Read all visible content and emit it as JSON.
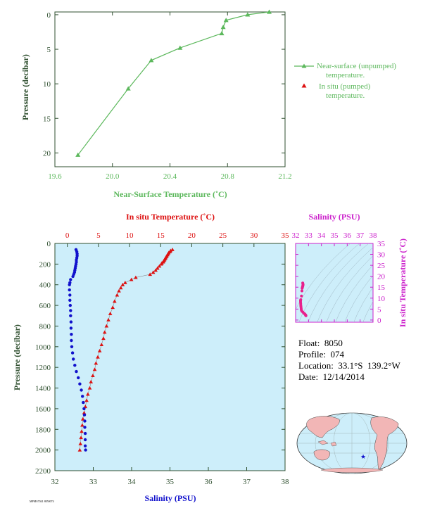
{
  "colors": {
    "green": "#5cb85c",
    "red": "#dd1111",
    "blue": "#1111cc",
    "magenta": "#cc22cc",
    "pink": "#e8208c",
    "axis_dark": "#2f4f2f",
    "plot_bg": "#cdeefa",
    "land": "#f2b6b6"
  },
  "info": {
    "float": "Float:  8050",
    "profile": "Profile:  074",
    "location": "Location:  33.1°S  139.2°W",
    "date": "Date:  12/14/2014"
  },
  "footer_code": "MPMS7041 8050074",
  "chart_data": [
    {
      "type": "line",
      "id": "near-surface",
      "xlabel": "Near-Surface Temperature (˚C)",
      "ylabel": "Pressure (decibar)",
      "xlim": [
        19.6,
        21.2
      ],
      "ylim": [
        22,
        -0.4
      ],
      "xticks": [
        "19.6",
        "20.0",
        "20.4",
        "20.8",
        "21.2"
      ],
      "yticks": [
        "0",
        "5",
        "10",
        "15",
        "20"
      ],
      "legend_position": "right",
      "legend": [
        {
          "label": "Near-surface (unpumped)",
          "label2": "temperature.",
          "color": "#5cb85c"
        },
        {
          "label": "In situ (pumped)",
          "label2": "temperature.",
          "color": "#dd1111"
        }
      ],
      "series": [
        {
          "name": "Near-surface (unpumped) temperature.",
          "color": "#5cb85c",
          "x": [
            21.09,
            20.94,
            20.79,
            20.77,
            20.76,
            20.47,
            20.27,
            20.11,
            19.76
          ],
          "y": [
            -0.4,
            0.0,
            0.8,
            1.8,
            2.7,
            4.8,
            6.6,
            10.7,
            20.3
          ]
        }
      ]
    },
    {
      "type": "scatter",
      "id": "profile",
      "top_axis_label": "In situ Temperature (˚C)",
      "bottom_axis_label": "Salinity (PSU)",
      "ylabel": "Pressure (decibar)",
      "top_xlim": [
        -2,
        35
      ],
      "bottom_xlim": [
        32,
        38
      ],
      "ylim": [
        2200,
        0
      ],
      "top_ticks": [
        "0",
        "5",
        "10",
        "15",
        "20",
        "25",
        "30",
        "35"
      ],
      "bottom_ticks": [
        "32",
        "33",
        "34",
        "35",
        "36",
        "37",
        "38"
      ],
      "yticks": [
        "0",
        "200",
        "400",
        "600",
        "800",
        "1000",
        "1200",
        "1400",
        "1600",
        "1800",
        "2000",
        "2200"
      ],
      "series": [
        {
          "name": "In situ Temperature (˚C)",
          "color": "#dd1111",
          "p": [
            60,
            70,
            80,
            90,
            100,
            110,
            120,
            130,
            140,
            150,
            160,
            170,
            180,
            190,
            200,
            220,
            240,
            260,
            280,
            300,
            330,
            350,
            380,
            400,
            430,
            460,
            500,
            560,
            620,
            680,
            740,
            800,
            860,
            920,
            980,
            1040,
            1100,
            1160,
            1220,
            1280,
            1340,
            1400,
            1460,
            1520,
            1580,
            1640,
            1700,
            1760,
            1820,
            1880,
            1940,
            2000
          ],
          "t": [
            16.9,
            16.6,
            16.5,
            16.3,
            16.2,
            16.1,
            16.0,
            15.9,
            15.8,
            15.7,
            15.6,
            15.5,
            15.4,
            15.2,
            15.1,
            14.8,
            14.5,
            14.2,
            13.8,
            13.3,
            11.0,
            10.3,
            9.3,
            8.9,
            8.6,
            8.3,
            8.0,
            7.6,
            7.3,
            6.9,
            6.6,
            6.3,
            6.0,
            5.8,
            5.5,
            5.2,
            4.9,
            4.6,
            4.4,
            4.1,
            3.8,
            3.6,
            3.3,
            3.1,
            2.9,
            2.7,
            2.5,
            2.4,
            2.3,
            2.2,
            2.1,
            2.0
          ]
        },
        {
          "name": "Salinity (PSU)",
          "color": "#1111cc",
          "p": [
            60,
            80,
            100,
            120,
            140,
            160,
            180,
            200,
            220,
            240,
            260,
            280,
            300,
            320,
            350,
            380,
            400,
            450,
            500,
            550,
            600,
            650,
            700,
            760,
            820,
            880,
            940,
            1000,
            1060,
            1120,
            1180,
            1240,
            1300,
            1360,
            1420,
            1480,
            1540,
            1600,
            1660,
            1720,
            1780,
            1840,
            1900,
            1960,
            2000
          ],
          "s": [
            32.55,
            32.57,
            32.58,
            32.58,
            32.57,
            32.56,
            32.56,
            32.55,
            32.54,
            32.53,
            32.52,
            32.51,
            32.49,
            32.47,
            32.41,
            32.39,
            32.38,
            32.38,
            32.39,
            32.39,
            32.4,
            32.41,
            32.41,
            32.42,
            32.42,
            32.43,
            32.43,
            32.44,
            32.46,
            32.48,
            32.52,
            32.56,
            32.61,
            32.65,
            32.69,
            32.72,
            32.74,
            32.76,
            32.77,
            32.78,
            32.78,
            32.79,
            32.79,
            32.79,
            32.8
          ]
        }
      ]
    },
    {
      "type": "scatter",
      "id": "ts-diagram",
      "top_axis_label": "Salinity (PSU)",
      "right_axis_label": "In situ Temperature (˚C)",
      "xlim": [
        32,
        38
      ],
      "ylim": [
        -1,
        35
      ],
      "xticks": [
        "32",
        "33",
        "34",
        "35",
        "36",
        "37",
        "38"
      ],
      "yticks": [
        "0",
        "5",
        "10",
        "15",
        "20",
        "25",
        "30",
        "35"
      ],
      "series": [
        {
          "name": "T-S",
          "color": "#e8208c",
          "s": [
            32.55,
            32.57,
            32.58,
            32.57,
            32.56,
            32.55,
            32.53,
            32.51,
            32.49,
            32.45,
            32.4,
            32.38,
            32.38,
            32.39,
            32.4,
            32.41,
            32.42,
            32.43,
            32.44,
            32.48,
            32.56,
            32.65,
            32.72,
            32.76,
            32.78,
            32.79,
            32.8
          ],
          "t": [
            16.9,
            16.5,
            16.2,
            16.0,
            15.7,
            15.4,
            15.0,
            14.5,
            13.3,
            11.0,
            9.3,
            8.9,
            8.3,
            7.6,
            6.9,
            6.3,
            5.8,
            5.2,
            4.6,
            4.1,
            3.6,
            3.1,
            2.7,
            2.4,
            2.2,
            2.1,
            2.0
          ]
        }
      ]
    },
    {
      "type": "map",
      "id": "location-map",
      "marker": "★",
      "marker_color": "#1111cc"
    }
  ]
}
